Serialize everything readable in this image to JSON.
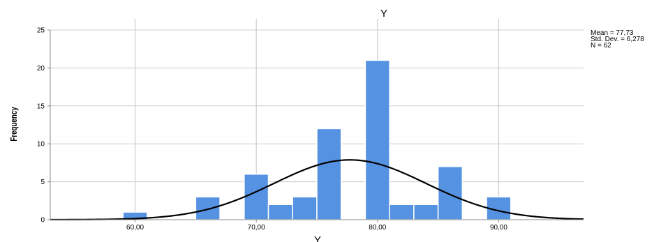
{
  "chart_data": {
    "type": "bar",
    "title": "Y",
    "xlabel": "Y",
    "ylabel": "Frequency",
    "bins": [
      {
        "start": 59.0,
        "end": 61.0,
        "value": 1
      },
      {
        "start": 65.0,
        "end": 67.0,
        "value": 3
      },
      {
        "start": 69.0,
        "end": 71.0,
        "value": 6
      },
      {
        "start": 71.0,
        "end": 73.0,
        "value": 2
      },
      {
        "start": 73.0,
        "end": 75.0,
        "value": 3
      },
      {
        "start": 75.0,
        "end": 77.0,
        "value": 12
      },
      {
        "start": 79.0,
        "end": 81.0,
        "value": 21
      },
      {
        "start": 81.0,
        "end": 83.0,
        "value": 2
      },
      {
        "start": 83.0,
        "end": 85.0,
        "value": 2
      },
      {
        "start": 85.0,
        "end": 87.0,
        "value": 7
      },
      {
        "start": 89.0,
        "end": 91.0,
        "value": 3
      }
    ],
    "xlim": [
      53,
      97
    ],
    "ylim": [
      0,
      25
    ],
    "x_ticks": [
      60,
      70,
      80,
      90
    ],
    "x_tick_labels": [
      "60,00",
      "70,00",
      "80,00",
      "90,00"
    ],
    "y_ticks": [
      0,
      5,
      10,
      15,
      20,
      25
    ],
    "y_tick_labels": [
      "0",
      "5",
      "10",
      "15",
      "20",
      "25"
    ],
    "normal_curve": {
      "mean": 77.73,
      "std": 6.278,
      "n": 62,
      "bin_width": 2
    },
    "stats_text": [
      "Mean = 77,73",
      "Std. Dev. = 6,278",
      "N = 62"
    ],
    "grid": true,
    "bar_color": "#5592e2",
    "bar_edge_color": "#ffffff",
    "curve_color": "#000000",
    "grid_color": "#cccccc",
    "axis_color": "#888888"
  }
}
